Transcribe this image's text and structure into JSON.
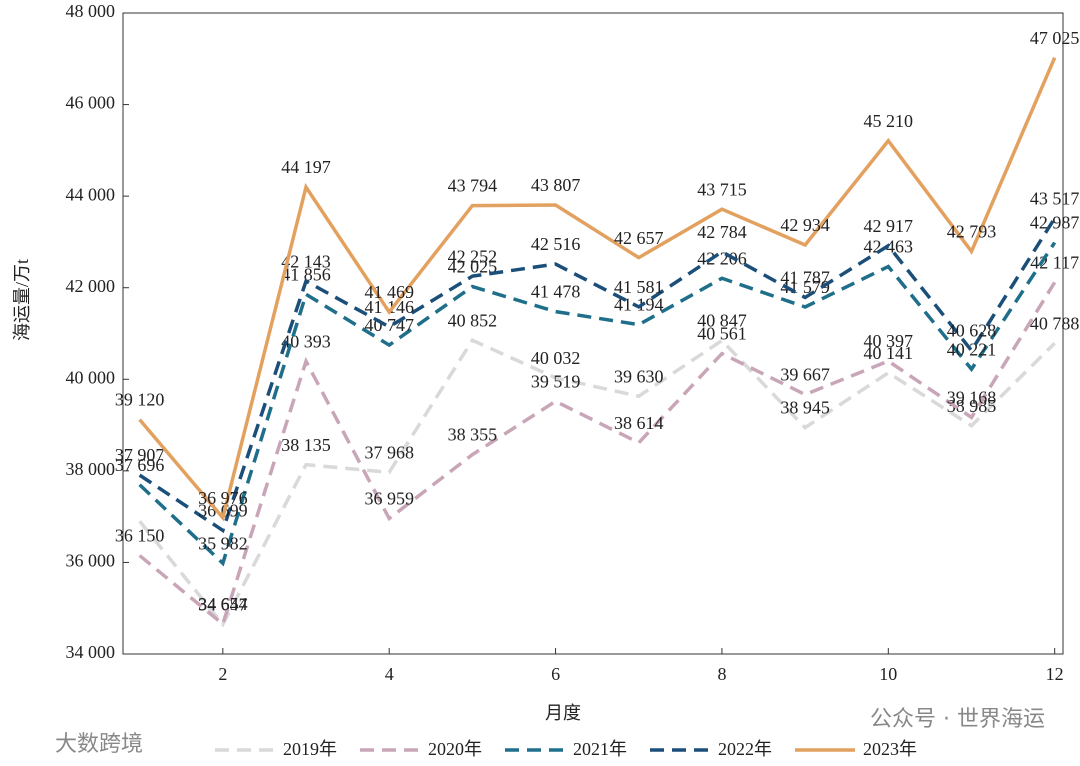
{
  "chart_data": {
    "type": "line",
    "x_label": "月度",
    "y_label": "海运量/万t",
    "x": [
      1,
      2,
      3,
      4,
      5,
      6,
      7,
      8,
      9,
      10,
      11,
      12
    ],
    "xlim": [
      0.8,
      12.1
    ],
    "xticks": [
      2,
      4,
      6,
      8,
      10,
      12
    ],
    "ylim": [
      34000,
      48000
    ],
    "yticks": [
      {
        "value": 34000,
        "label": "34 000"
      },
      {
        "value": 36000,
        "label": "36 000"
      },
      {
        "value": 38000,
        "label": "38 000"
      },
      {
        "value": 40000,
        "label": "40 000"
      },
      {
        "value": 42000,
        "label": "42 000"
      },
      {
        "value": 44000,
        "label": "44 000"
      },
      {
        "value": 46000,
        "label": "46 000"
      },
      {
        "value": 48000,
        "label": "48 000"
      }
    ],
    "legend": "bottom",
    "series": [
      {
        "name": "2019年",
        "color": "#d9d9d9",
        "style": "dashed",
        "values": [
          36900,
          34647,
          38135,
          37968,
          40852,
          40032,
          39630,
          40847,
          38945,
          40141,
          38985,
          40788
        ],
        "value_labels": [
          null,
          "34 647",
          "38 135",
          "37 968",
          "40 852",
          "40 032",
          "39 630",
          "40 847",
          "38 945",
          "40 141",
          "38 985",
          "40 788"
        ]
      },
      {
        "name": "2020年",
        "color": "#c9a5b8",
        "style": "dashed",
        "values": [
          36150,
          34654,
          40393,
          36959,
          38355,
          39519,
          38614,
          40561,
          39667,
          40397,
          39168,
          42117
        ],
        "value_labels": [
          "36 150",
          "34 654",
          "40 393",
          "36 959",
          "38 355",
          "39 519",
          "38 614",
          "40 561",
          "39 667",
          "40 397",
          "39 168",
          "42 117"
        ]
      },
      {
        "name": "2021年",
        "color": "#1f6f8b",
        "style": "dashed",
        "values": [
          37696,
          35982,
          41856,
          40747,
          42025,
          41478,
          41194,
          42206,
          41579,
          42463,
          40221,
          42987
        ],
        "value_labels": [
          "37 696",
          "35 982",
          "41 856",
          "40 747",
          "42 025",
          "41 478",
          "41 194",
          "42 206",
          "41 579",
          "42 463",
          "40 221",
          "42 987"
        ]
      },
      {
        "name": "2022年",
        "color": "#1b4f7a",
        "style": "dashed",
        "values": [
          37907,
          36699,
          42143,
          41146,
          42252,
          42516,
          41581,
          42784,
          41787,
          42917,
          40628,
          43517
        ],
        "value_labels": [
          "37 907",
          "36 699",
          "42 143",
          "41 146",
          "42 252",
          "42 516",
          "41 581",
          "42 784",
          "41 787",
          "42 917",
          "40 628",
          "43 517"
        ]
      },
      {
        "name": "2023年",
        "color": "#e3a15f",
        "style": "solid",
        "values": [
          39120,
          36976,
          44197,
          41469,
          43794,
          43807,
          42657,
          43715,
          42934,
          45210,
          42793,
          47025
        ],
        "value_labels": [
          "39 120",
          "36 976",
          "44 197",
          "41 469",
          "43 794",
          "43 807",
          "42 657",
          "43 715",
          "42 934",
          "45 210",
          "42 793",
          "47 025"
        ]
      }
    ],
    "watermarks": [
      "公众号 · 世界海运",
      "大数跨境"
    ]
  }
}
